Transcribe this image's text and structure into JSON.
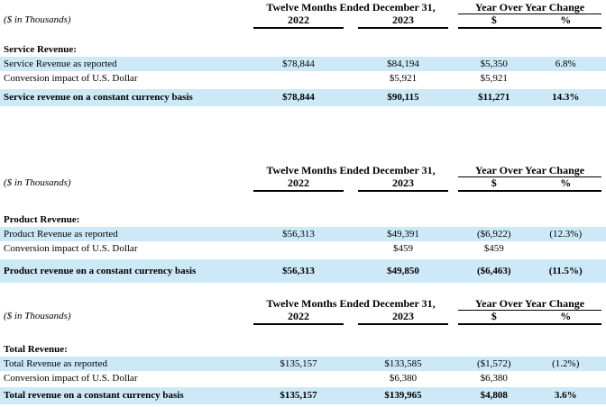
{
  "colors": {
    "page_background": "#ffffff",
    "row_shade": "#cde9f8",
    "text": "#000000",
    "rule": "#000000"
  },
  "tables": [
    {
      "name": "Service Revenue",
      "period_header": "Twelve Months Ended December 31,",
      "yoy_header": "Year Over Year Change",
      "units_label": "($ in Thousands)",
      "columns": {
        "y2022": "2022",
        "y2023": "2023",
        "dollar": "$",
        "percent": "%"
      },
      "section_label": "Service Revenue:",
      "rows": [
        {
          "label": "Service Revenue as reported",
          "y2022": "$78,844",
          "y2023": "$84,194",
          "change": "$5,350",
          "percent": "6.8%"
        },
        {
          "label": "Conversion impact of U.S. Dollar",
          "y2022": "",
          "y2023": "$5,921",
          "change": "$5,921",
          "percent": ""
        },
        {
          "label": "Service revenue on a constant currency basis",
          "y2022": "$78,844",
          "y2023": "$90,115",
          "change": "$11,271",
          "percent": "14.3%"
        }
      ]
    },
    {
      "name": "Product Revenue",
      "period_header": "Twelve Months Ended December 31,",
      "yoy_header": "Year Over Year Change",
      "units_label": "($ in Thousands)",
      "columns": {
        "y2022": "2022",
        "y2023": "2023",
        "dollar": "$",
        "percent": "%"
      },
      "section_label": "Product Revenue:",
      "rows": [
        {
          "label": "Product Revenue as reported",
          "y2022": "$56,313",
          "y2023": "$49,391",
          "change": "($6,922)",
          "percent": "(12.3%)"
        },
        {
          "label": "Conversion impact of U.S. Dollar",
          "y2022": "",
          "y2023": "$459",
          "change": "$459",
          "percent": ""
        },
        {
          "label": "Product revenue on a constant currency basis",
          "y2022": "$56,313",
          "y2023": "$49,850",
          "change": "($6,463)",
          "percent": "(11.5%)"
        }
      ]
    },
    {
      "name": "Total Revenue",
      "period_header": "Twelve Months Ended December 31,",
      "yoy_header": "Year Over Year Change",
      "units_label": "($ in Thousands)",
      "columns": {
        "y2022": "2022",
        "y2023": "2023",
        "dollar": "$",
        "percent": "%"
      },
      "section_label": "Total Revenue:",
      "rows": [
        {
          "label": "Total Revenue as reported",
          "y2022": "$135,157",
          "y2023": "$133,585",
          "change": "($1,572)",
          "percent": "(1.2%)"
        },
        {
          "label": "Conversion impact of U.S. Dollar",
          "y2022": "",
          "y2023": "$6,380",
          "change": "$6,380",
          "percent": ""
        },
        {
          "label": "Total revenue on a constant currency basis",
          "y2022": "$135,157",
          "y2023": "$139,965",
          "change": "$4,808",
          "percent": "3.6%"
        }
      ]
    }
  ]
}
